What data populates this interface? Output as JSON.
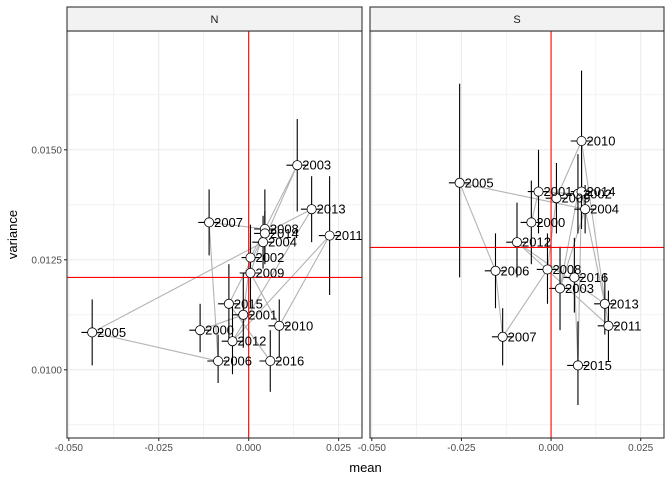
{
  "chart_data": {
    "type": "scatter",
    "xlabel": "mean",
    "ylabel": "variance",
    "xlim": [
      -0.0505,
      0.0315
    ],
    "ylim": [
      0.00845,
      0.0177
    ],
    "x_ticks": [
      -0.05,
      -0.025,
      0.0,
      0.025
    ],
    "x_tick_labels": [
      "-0.050",
      "-0.025",
      "0.000",
      "0.025"
    ],
    "y_ticks": [
      0.01,
      0.0125,
      0.015
    ],
    "y_tick_labels": [
      "0.0100",
      "0.0125",
      "0.0150"
    ],
    "grid": true,
    "colors": {
      "reference_line": "#ff0000",
      "path": "#b3b3b3",
      "error_bar": "#000000",
      "point_fill": "#ffffff",
      "point_stroke": "#000000",
      "strip_fill": "#f2f2f2",
      "panel_border": "#333333",
      "grid": "#ebebeb"
    },
    "panels": [
      {
        "name": "N",
        "ref_x": 0.0,
        "ref_y": 0.0121,
        "points": [
          {
            "label": "2000",
            "x": -0.0135,
            "y": 0.0109,
            "ylo": 0.0104,
            "yhi": 0.0115,
            "xlo": -0.0165,
            "xhi": -0.0105
          },
          {
            "label": "2001",
            "x": -0.0015,
            "y": 0.01125,
            "ylo": 0.0105,
            "yhi": 0.0122,
            "xlo": -0.0045,
            "xhi": 0.0015
          },
          {
            "label": "2002",
            "x": 0.0005,
            "y": 0.01255,
            "ylo": 0.0118,
            "yhi": 0.0133,
            "xlo": -0.002,
            "xhi": 0.003
          },
          {
            "label": "2003",
            "x": 0.0135,
            "y": 0.01465,
            "ylo": 0.0136,
            "yhi": 0.0157,
            "xlo": 0.0105,
            "xhi": 0.0165
          },
          {
            "label": "2004",
            "x": 0.004,
            "y": 0.0129,
            "ylo": 0.0123,
            "yhi": 0.0135,
            "xlo": 0.001,
            "xhi": 0.007
          },
          {
            "label": "2005",
            "x": -0.0435,
            "y": 0.01085,
            "ylo": 0.0101,
            "yhi": 0.0116,
            "xlo": -0.0465,
            "xhi": -0.0405
          },
          {
            "label": "2006",
            "x": -0.0085,
            "y": 0.0102,
            "ylo": 0.0097,
            "yhi": 0.0108,
            "xlo": -0.0115,
            "xhi": -0.0055
          },
          {
            "label": "2007",
            "x": -0.011,
            "y": 0.01335,
            "ylo": 0.0126,
            "yhi": 0.0141,
            "xlo": -0.014,
            "xhi": -0.008
          },
          {
            "label": "2008",
            "x": 0.0045,
            "y": 0.0132,
            "ylo": 0.0124,
            "yhi": 0.0141,
            "xlo": 0.0015,
            "xhi": 0.0075
          },
          {
            "label": "2009",
            "x": 0.0005,
            "y": 0.0122,
            "ylo": 0.0114,
            "yhi": 0.0131,
            "xlo": -0.0025,
            "xhi": 0.0035
          },
          {
            "label": "2010",
            "x": 0.0085,
            "y": 0.011,
            "ylo": 0.0103,
            "yhi": 0.0116,
            "xlo": 0.0055,
            "xhi": 0.0115
          },
          {
            "label": "2011",
            "x": 0.0225,
            "y": 0.01305,
            "ylo": 0.0117,
            "yhi": 0.0144,
            "xlo": 0.0195,
            "xhi": 0.0255
          },
          {
            "label": "2012",
            "x": -0.0045,
            "y": 0.01065,
            "ylo": 0.0099,
            "yhi": 0.0115,
            "xlo": -0.0075,
            "xhi": -0.0015
          },
          {
            "label": "2013",
            "x": 0.0175,
            "y": 0.01365,
            "ylo": 0.0129,
            "yhi": 0.0144,
            "xlo": 0.0145,
            "xhi": 0.0205
          },
          {
            "label": "2014",
            "x": 0.0045,
            "y": 0.0131,
            "ylo": 0.0125,
            "yhi": 0.0136,
            "xlo": 0.0015,
            "xhi": 0.0075
          },
          {
            "label": "2015",
            "x": -0.0055,
            "y": 0.0115,
            "ylo": 0.0107,
            "yhi": 0.0124,
            "xlo": -0.0085,
            "xhi": -0.0025
          },
          {
            "label": "2016",
            "x": 0.006,
            "y": 0.0102,
            "ylo": 0.0095,
            "yhi": 0.0109,
            "xlo": 0.003,
            "xhi": 0.009
          }
        ]
      },
      {
        "name": "S",
        "ref_x": 0.0,
        "ref_y": 0.01278,
        "points": [
          {
            "label": "2000",
            "x": -0.0055,
            "y": 0.01335,
            "ylo": 0.0124,
            "yhi": 0.0143,
            "xlo": -0.0085,
            "xhi": -0.0025
          },
          {
            "label": "2001",
            "x": -0.0035,
            "y": 0.01405,
            "ylo": 0.0131,
            "yhi": 0.015,
            "xlo": -0.0065,
            "xhi": -0.0005
          },
          {
            "label": "2002",
            "x": 0.0075,
            "y": 0.014,
            "ylo": 0.0131,
            "yhi": 0.0149,
            "xlo": 0.0045,
            "xhi": 0.0105
          },
          {
            "label": "2003",
            "x": 0.0025,
            "y": 0.01185,
            "ylo": 0.0109,
            "yhi": 0.0128,
            "xlo": -0.0005,
            "xhi": 0.0055
          },
          {
            "label": "2004",
            "x": 0.0095,
            "y": 0.01365,
            "ylo": 0.0131,
            "yhi": 0.0142,
            "xlo": 0.0065,
            "xhi": 0.0125
          },
          {
            "label": "2005",
            "x": -0.0255,
            "y": 0.01425,
            "ylo": 0.0121,
            "yhi": 0.0165,
            "xlo": -0.0285,
            "xhi": -0.0225
          },
          {
            "label": "2006",
            "x": -0.0155,
            "y": 0.01225,
            "ylo": 0.0114,
            "yhi": 0.0131,
            "xlo": -0.0185,
            "xhi": -0.0125
          },
          {
            "label": "2007",
            "x": -0.0135,
            "y": 0.01075,
            "ylo": 0.0101,
            "yhi": 0.0114,
            "xlo": -0.0165,
            "xhi": -0.0105
          },
          {
            "label": "2008",
            "x": -0.001,
            "y": 0.01228,
            "ylo": 0.0115,
            "yhi": 0.0131,
            "xlo": -0.004,
            "xhi": 0.002
          },
          {
            "label": "2009",
            "x": 0.0015,
            "y": 0.0139,
            "ylo": 0.0131,
            "yhi": 0.0147,
            "xlo": -0.0015,
            "xhi": 0.0045
          },
          {
            "label": "2010",
            "x": 0.0085,
            "y": 0.0152,
            "ylo": 0.0141,
            "yhi": 0.0168,
            "xlo": 0.0055,
            "xhi": 0.0115
          },
          {
            "label": "2011",
            "x": 0.016,
            "y": 0.011,
            "ylo": 0.0102,
            "yhi": 0.0118,
            "xlo": 0.013,
            "xhi": 0.019
          },
          {
            "label": "2012",
            "x": -0.0095,
            "y": 0.0129,
            "ylo": 0.0121,
            "yhi": 0.0138,
            "xlo": -0.0125,
            "xhi": -0.0065
          },
          {
            "label": "2013",
            "x": 0.015,
            "y": 0.0115,
            "ylo": 0.0108,
            "yhi": 0.0122,
            "xlo": 0.012,
            "xhi": 0.018
          },
          {
            "label": "2014",
            "x": 0.0085,
            "y": 0.01405,
            "ylo": 0.0132,
            "yhi": 0.0149,
            "xlo": 0.0055,
            "xhi": 0.0115
          },
          {
            "label": "2015",
            "x": 0.0075,
            "y": 0.0101,
            "ylo": 0.0092,
            "yhi": 0.0111,
            "xlo": 0.0045,
            "xhi": 0.0105
          },
          {
            "label": "2016",
            "x": 0.0065,
            "y": 0.0121,
            "ylo": 0.0113,
            "yhi": 0.013,
            "xlo": 0.0035,
            "xhi": 0.0095
          }
        ]
      }
    ]
  }
}
